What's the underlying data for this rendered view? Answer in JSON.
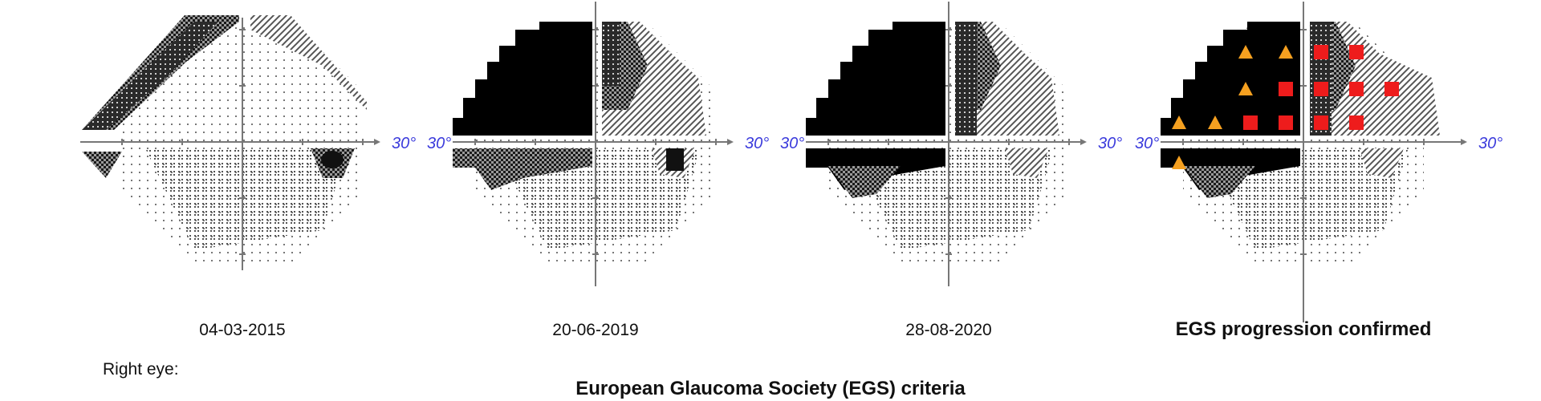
{
  "panels": [
    {
      "date": "04-03-2015"
    },
    {
      "date": "20-06-2019"
    },
    {
      "date": "28-08-2020"
    },
    {
      "date": "EGS progression confirmed"
    }
  ],
  "axis_label": "30°",
  "eye_label": "Right eye:",
  "title": "European Glaucoma Society (EGS) criteria",
  "colors": {
    "deep_defect": "#000000",
    "moderate_defect": "#8a8a8a",
    "legend_triangle": "#f5a020",
    "legend_square": "#ee1c1c",
    "axis_label": "#3b3bdc"
  }
}
